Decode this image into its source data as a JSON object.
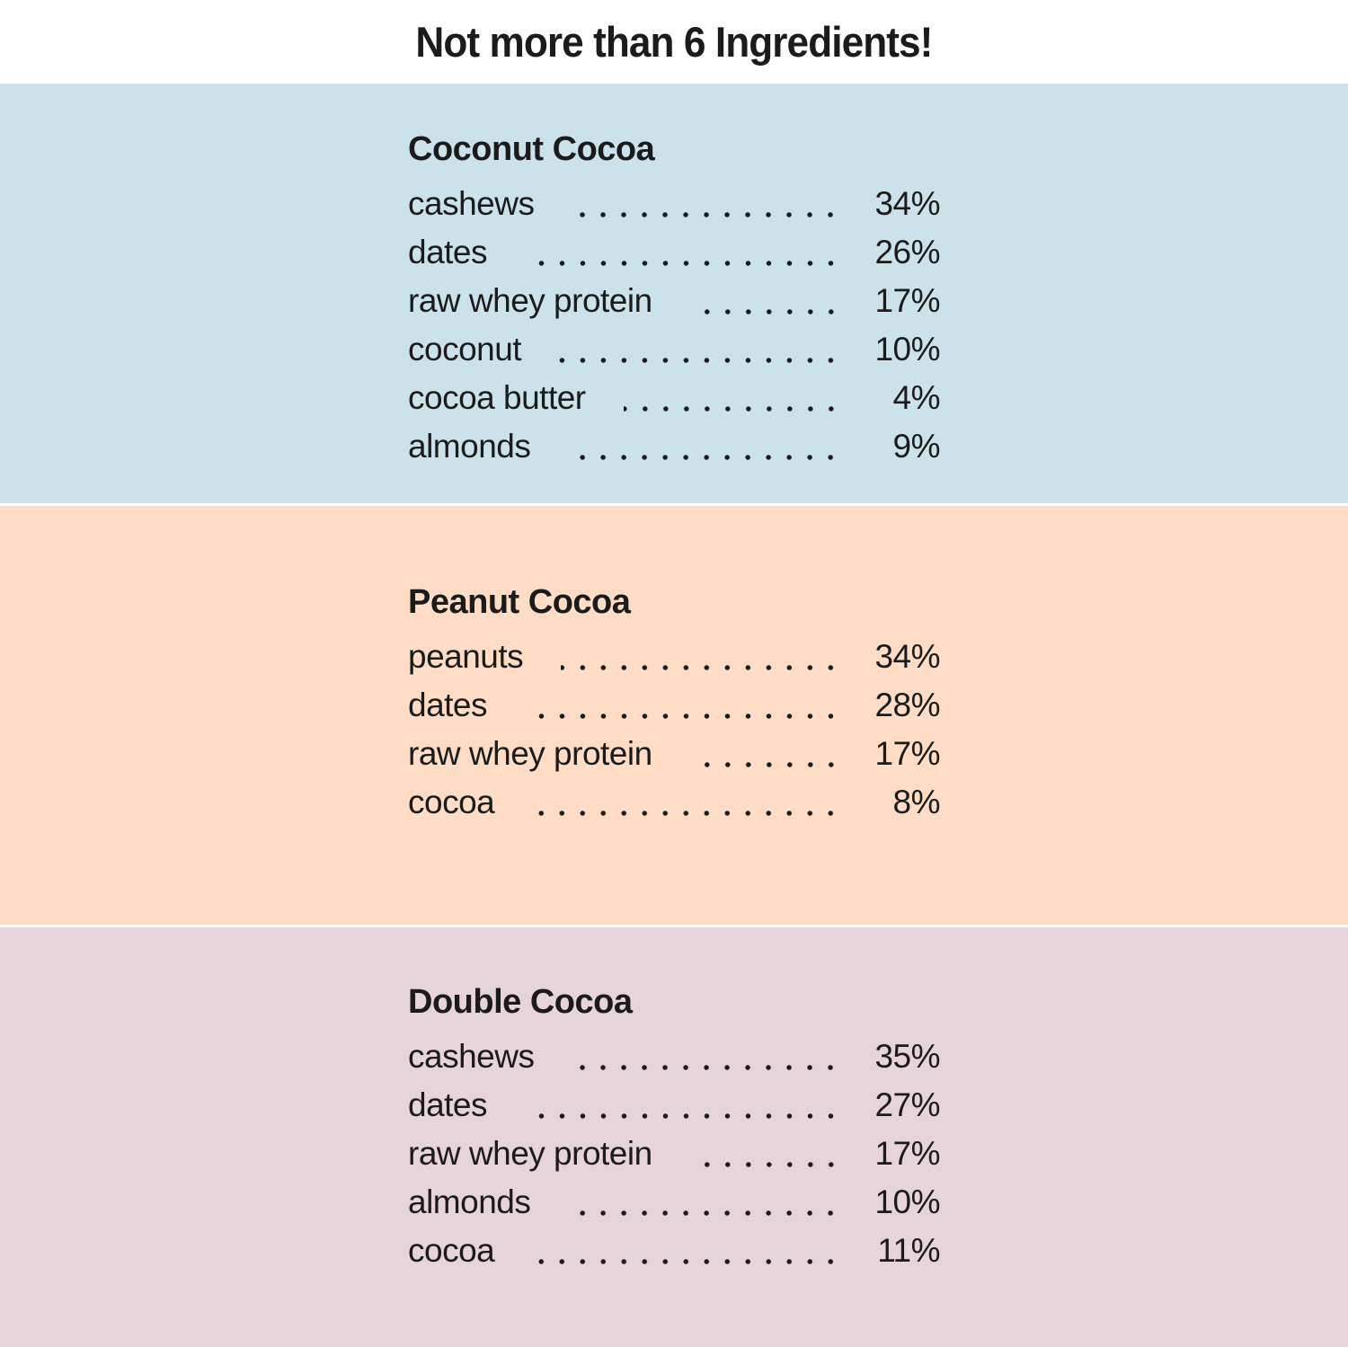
{
  "title": "Not more than 6 Ingredients!",
  "colors": {
    "page_background": "#ffffff",
    "text": "#1b1b1b",
    "panel_coconut_cocoa": "#cbe2ea",
    "panel_peanut_cocoa": "#fedcc5",
    "panel_double_cocoa": "#e7d4da"
  },
  "sections": [
    {
      "heading": "Coconut Cocoa",
      "bg": "#cbe2ea",
      "rows": [
        {
          "name": "cashews",
          "percent": "34%"
        },
        {
          "name": "dates",
          "percent": "26%"
        },
        {
          "name": "raw whey protein",
          "percent": "17%"
        },
        {
          "name": "coconut",
          "percent": "10%"
        },
        {
          "name": "cocoa butter",
          "percent": "4%"
        },
        {
          "name": "almonds",
          "percent": "9%"
        }
      ]
    },
    {
      "heading": "Peanut Cocoa",
      "bg": "#fedcc5",
      "rows": [
        {
          "name": "peanuts",
          "percent": "34%"
        },
        {
          "name": "dates",
          "percent": "28%"
        },
        {
          "name": "raw whey protein",
          "percent": "17%"
        },
        {
          "name": "cocoa",
          "percent": "8%"
        }
      ]
    },
    {
      "heading": "Double Cocoa",
      "bg": "#e7d4da",
      "rows": [
        {
          "name": "cashews",
          "percent": "35%"
        },
        {
          "name": "dates",
          "percent": "27%"
        },
        {
          "name": "raw whey protein",
          "percent": "17%"
        },
        {
          "name": "almonds",
          "percent": "10%"
        },
        {
          "name": "cocoa",
          "percent": "11%"
        }
      ]
    }
  ]
}
